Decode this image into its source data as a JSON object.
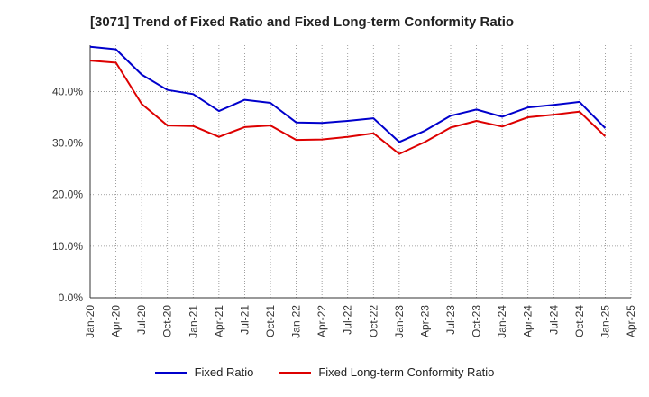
{
  "title": "[3071]  Trend of Fixed Ratio and Fixed Long-term Conformity Ratio",
  "chart_data": {
    "type": "line",
    "title": "[3071]  Trend of Fixed Ratio and Fixed Long-term Conformity Ratio",
    "xlabel": "",
    "ylabel": "",
    "x": [
      "Jan-20",
      "Apr-20",
      "Jul-20",
      "Oct-20",
      "Jan-21",
      "Apr-21",
      "Jul-21",
      "Oct-21",
      "Jan-22",
      "Apr-22",
      "Jul-22",
      "Oct-22",
      "Jan-23",
      "Apr-23",
      "Jul-23",
      "Oct-23",
      "Jan-24",
      "Apr-24",
      "Jul-24",
      "Oct-24",
      "Jan-25"
    ],
    "x_ticks": [
      "Jan-20",
      "Apr-20",
      "Jul-20",
      "Oct-20",
      "Jan-21",
      "Apr-21",
      "Jul-21",
      "Oct-21",
      "Jan-22",
      "Apr-22",
      "Jul-22",
      "Oct-22",
      "Jan-23",
      "Apr-23",
      "Jul-23",
      "Oct-23",
      "Jan-24",
      "Apr-24",
      "Jul-24",
      "Oct-24",
      "Jan-25",
      "Apr-25"
    ],
    "y_ticks": [
      "0.0%",
      "10.0%",
      "20.0%",
      "30.0%",
      "40.0%"
    ],
    "ylim": [
      0,
      49
    ],
    "grid": true,
    "legend_position": "bottom",
    "series": [
      {
        "name": "Fixed Ratio",
        "color": "#0000cc",
        "values": [
          48.7,
          48.2,
          43.3,
          40.3,
          39.5,
          36.2,
          38.4,
          37.8,
          34.0,
          33.9,
          34.3,
          34.8,
          30.2,
          32.4,
          35.3,
          36.5,
          35.1,
          36.9,
          37.4,
          38.0,
          32.9
        ]
      },
      {
        "name": "Fixed Long-term Conformity Ratio",
        "color": "#dd0000",
        "values": [
          46.0,
          45.6,
          37.6,
          33.4,
          33.3,
          31.2,
          33.1,
          33.4,
          30.6,
          30.7,
          31.2,
          31.9,
          27.9,
          30.2,
          33.0,
          34.3,
          33.2,
          35.0,
          35.5,
          36.1,
          31.3
        ]
      }
    ]
  }
}
